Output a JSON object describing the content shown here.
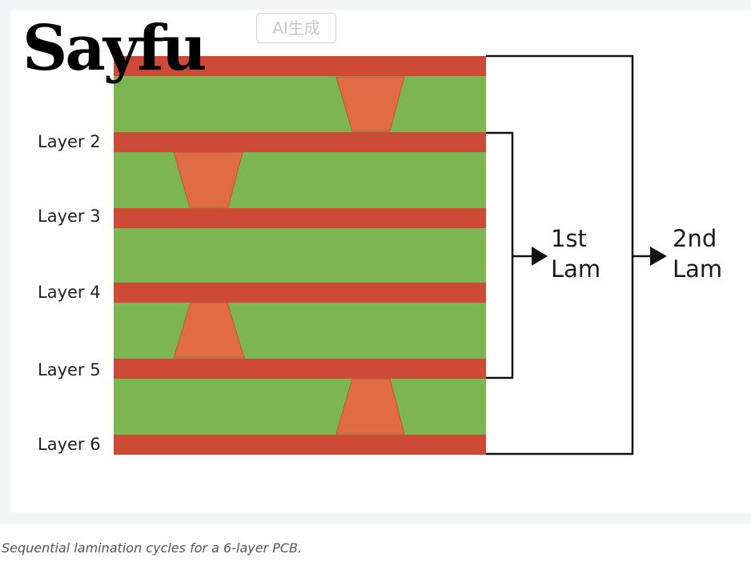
{
  "logo": "Sayfu",
  "watermark": "AI生成",
  "layers": [
    "Layer 2",
    "Layer 3",
    "Layer 4",
    "Layer 5",
    "Layer 6"
  ],
  "lam1": {
    "line1": "1st",
    "line2": "Lam"
  },
  "lam2": {
    "line1": "2nd",
    "line2": "Lam"
  },
  "caption": "Sequential lamination cycles for a 6-layer PCB.",
  "colors": {
    "copper": "#cc4a36",
    "core": "#7db650",
    "via": "#e06b45"
  }
}
